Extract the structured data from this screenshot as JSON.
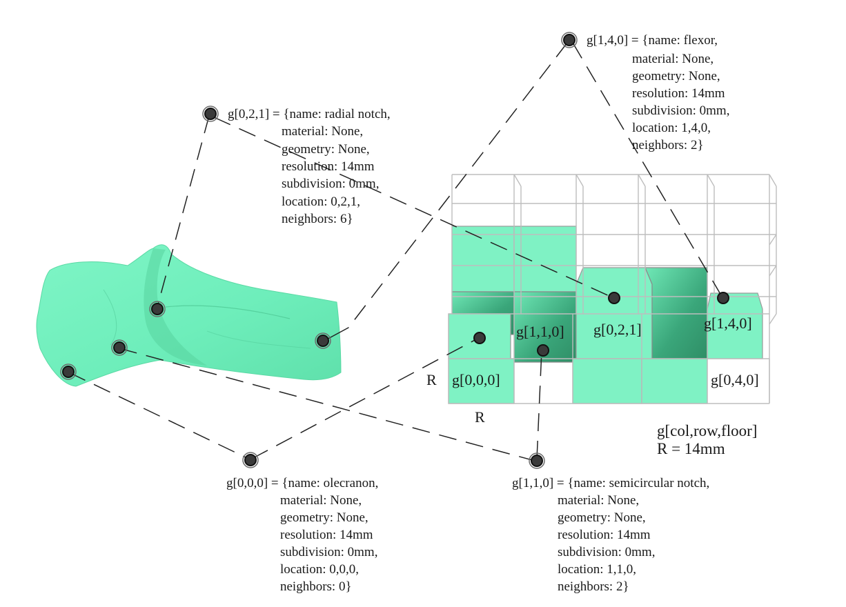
{
  "annotations": [
    {
      "id": "g010",
      "header": "g[1,4,0] = {name: flexor,",
      "lines": [
        "material: None,",
        "geometry: None,",
        "resolution: 14mm",
        "subdivision: 0mm,",
        "location: 1,4,0,",
        "neighbors: 2}"
      ]
    },
    {
      "id": "g021",
      "header": "g[0,2,1] = {name: radial notch,",
      "lines": [
        "material: None,",
        "geometry: None,",
        "resolution: 14mm",
        "subdivision: 0mm,",
        "location: 0,2,1,",
        "neighbors: 6}"
      ]
    },
    {
      "id": "g000",
      "header": "g[0,0,0] = {name: olecranon,",
      "lines": [
        "material: None,",
        "geometry: None,",
        "resolution: 14mm",
        "subdivision: 0mm,",
        "location: 0,0,0,",
        "neighbors: 0}"
      ]
    },
    {
      "id": "g110",
      "header": "g[1,1,0] = {name: semicircular notch,",
      "lines": [
        "material: None,",
        "geometry: None,",
        "resolution: 14mm",
        "subdivision: 0mm,",
        "location: 1,1,0,",
        "neighbors: 2}"
      ]
    }
  ],
  "cell_labels": {
    "g000": "g[0,0,0]",
    "g110": "g[1,1,0]",
    "g021": "g[0,2,1]",
    "g140": "g[1,4,0]",
    "g040": "g[0,4,0]"
  },
  "axis_labels": {
    "r_side": "R",
    "r_bottom": "R"
  },
  "legend": {
    "notation": "g[col,row,floor]",
    "resolution": "R = 14mm"
  },
  "colors": {
    "voxel": "#7ff2c4",
    "voxel_shaded": "#3fbf8e",
    "bone": "#72f0bd",
    "grid": "#bdbdbd",
    "node": "#3a3a3a"
  }
}
